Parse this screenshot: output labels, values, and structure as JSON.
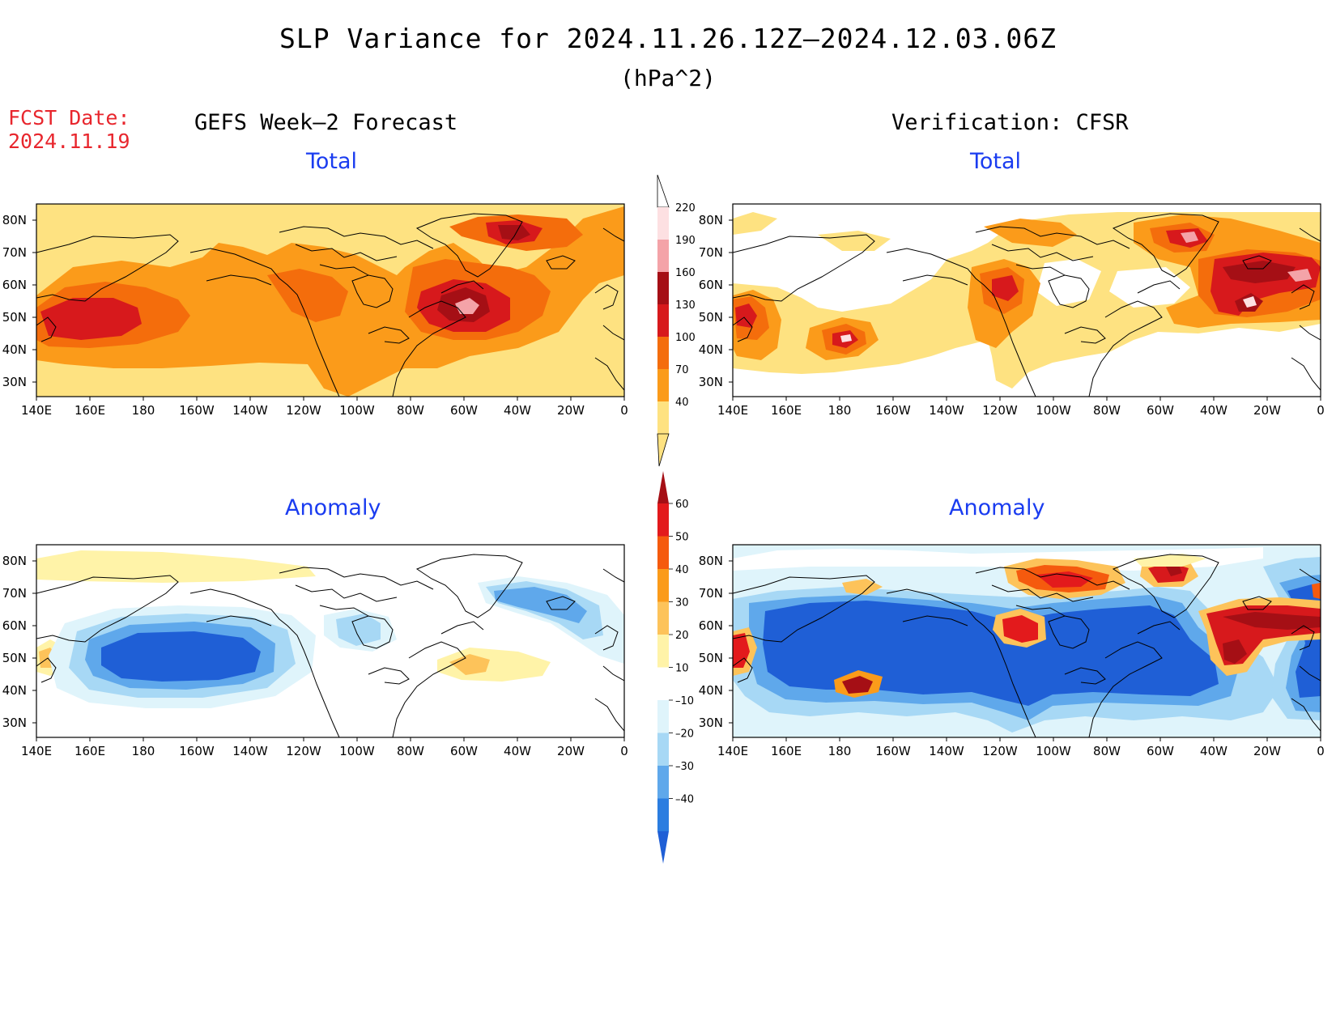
{
  "header": {
    "title": "SLP Variance for 2024.11.26.12Z–2024.12.03.06Z",
    "units": "(hPa^2)",
    "fcst_label": "FCST Date:",
    "fcst_date": "2024.11.19"
  },
  "columns": {
    "left": "GEFS Week–2 Forecast",
    "right": "Verification: CFSR"
  },
  "panels": {
    "top_left": "Total",
    "top_right": "Total",
    "bottom_left": "Anomaly",
    "bottom_right": "Anomaly"
  },
  "axes": {
    "lat_labels": [
      "80N",
      "70N",
      "60N",
      "50N",
      "40N",
      "30N"
    ],
    "lon_labels": [
      "140E",
      "160E",
      "180",
      "160W",
      "140W",
      "120W",
      "100W",
      "80W",
      "60W",
      "40W",
      "20W",
      "0"
    ]
  },
  "colorbars": {
    "total": {
      "labels": [
        "220",
        "190",
        "160",
        "130",
        "100",
        "70",
        "40"
      ],
      "colors": [
        "#fde0e2",
        "#f4a3a8",
        "#a50f15",
        "#d7191c",
        "#f46d0c",
        "#fb9b1a",
        "#fee281"
      ]
    },
    "anomaly": {
      "labels": [
        "60",
        "50",
        "40",
        "30",
        "20",
        "10",
        "–10",
        "–20",
        "–30",
        "–40"
      ],
      "colors": [
        "#a50f15",
        "#e31a1c",
        "#f55a0e",
        "#fb9b1a",
        "#fdc35a",
        "#fff3a8",
        "#ffffff",
        "#dff4fb",
        "#a7d8f5",
        "#5fa8eb",
        "#2b7de0",
        "#1f5fd6"
      ]
    }
  },
  "fields": {
    "total_levels": [
      "#fee281",
      "#fb9b1a",
      "#f46d0c",
      "#d7191c",
      "#a50f15",
      "#f4a3a8",
      "#fde0e2"
    ],
    "anom_pos_levels": [
      "#fff3a8",
      "#fdc35a",
      "#fb9b1a",
      "#f55a0e",
      "#e31a1c",
      "#a50f15"
    ],
    "anom_neg_levels": [
      "#dff4fb",
      "#a7d8f5",
      "#5fa8eb",
      "#1f5fd6"
    ]
  }
}
